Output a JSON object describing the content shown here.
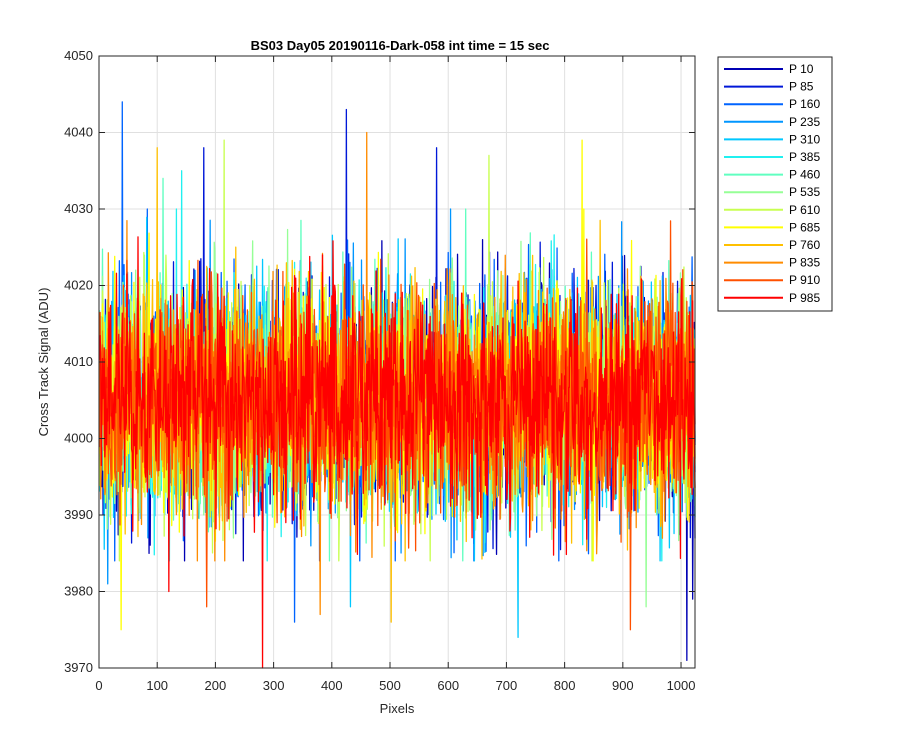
{
  "chart_data": {
    "type": "line",
    "title": "BS03 Day05 20190116-Dark-058 int time = 15 sec",
    "xlabel": "Pixels",
    "ylabel": "Cross Track Signal (ADU)",
    "xlim": [
      0,
      1024
    ],
    "ylim": [
      3970,
      4050
    ],
    "xticks": [
      0,
      100,
      200,
      300,
      400,
      500,
      600,
      700,
      800,
      900,
      1000
    ],
    "yticks": [
      3970,
      3980,
      3990,
      4000,
      4010,
      4020,
      4030,
      4040,
      4050
    ],
    "grid": true,
    "legend_position": "outside-top-right",
    "x": {
      "start": 1,
      "end": 1024,
      "step": 1
    },
    "noise_model": {
      "mean": 4005,
      "std": 7
    },
    "series": [
      {
        "name": "P 10",
        "color": "#0000b4",
        "peaks": [
          [
            1010,
            3971
          ],
          [
            1020,
            3979
          ]
        ]
      },
      {
        "name": "P 85",
        "color": "#0018d8",
        "peaks": [
          [
            425,
            4043
          ],
          [
            580,
            4038
          ],
          [
            180,
            4038
          ]
        ]
      },
      {
        "name": "P 160",
        "color": "#0064ff",
        "peaks": [
          [
            40,
            4044
          ],
          [
            336,
            3976
          ]
        ]
      },
      {
        "name": "P 235",
        "color": "#0096ff",
        "peaks": [
          [
            15,
            3981
          ]
        ]
      },
      {
        "name": "P 310",
        "color": "#00c8ff",
        "peaks": [
          [
            720,
            3974
          ],
          [
            432,
            3978
          ]
        ]
      },
      {
        "name": "P 385",
        "color": "#20f0f0",
        "peaks": [
          [
            142,
            4035
          ]
        ]
      },
      {
        "name": "P 460",
        "color": "#60ffc0",
        "peaks": [
          [
            110,
            4034
          ]
        ]
      },
      {
        "name": "P 535",
        "color": "#96ff96",
        "peaks": [
          [
            940,
            3978
          ]
        ]
      },
      {
        "name": "P 610",
        "color": "#c8ff50",
        "peaks": [
          [
            215,
            4039
          ],
          [
            670,
            4037
          ]
        ]
      },
      {
        "name": "P 685",
        "color": "#ffff00",
        "peaks": [
          [
            38,
            3975
          ],
          [
            830,
            4039
          ]
        ]
      },
      {
        "name": "P 760",
        "color": "#ffc000",
        "peaks": [
          [
            100,
            4038
          ],
          [
            502,
            3976
          ]
        ]
      },
      {
        "name": "P 835",
        "color": "#ff8c00",
        "peaks": [
          [
            460,
            4040
          ],
          [
            380,
            3977
          ]
        ]
      },
      {
        "name": "P 910",
        "color": "#ff5000",
        "peaks": [
          [
            913,
            3975
          ],
          [
            185,
            3978
          ]
        ]
      },
      {
        "name": "P 985",
        "color": "#ff0000",
        "peaks": [
          [
            281,
            3970
          ],
          [
            120,
            3980
          ]
        ]
      }
    ]
  }
}
